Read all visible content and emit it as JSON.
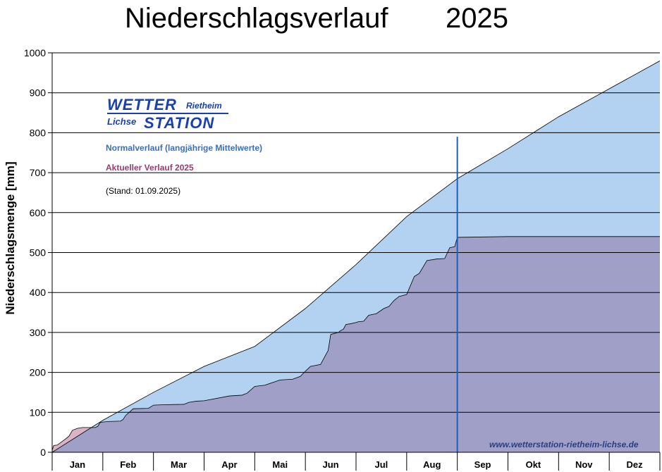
{
  "chart_data": {
    "type": "area",
    "title": "Niederschlagsverlauf",
    "year": "2025",
    "ylabel": "Niederschlagsmenge [mm]",
    "xlabel": "",
    "ylim": [
      0,
      1000
    ],
    "yticks": [
      "0",
      "100",
      "200",
      "300",
      "400",
      "500",
      "600",
      "700",
      "800",
      "900",
      "1000"
    ],
    "grid": true,
    "x_unit": "month_index",
    "categories": [
      "Jan",
      "Feb",
      "Mar",
      "Apr",
      "Mai",
      "Jun",
      "Jul",
      "Aug",
      "Sep",
      "Okt",
      "Nov",
      "Dez"
    ],
    "current_date_marker": {
      "x": 8.0,
      "label": ""
    },
    "series": [
      {
        "name": "Normalverlauf (langjährige Mittelwerte)",
        "color": "#b3d1f0",
        "x": [
          0,
          1,
          2,
          3,
          4,
          5,
          6,
          7,
          8,
          9,
          10,
          11,
          12
        ],
        "y": [
          0,
          80,
          150,
          215,
          265,
          360,
          470,
          590,
          685,
          760,
          840,
          910,
          980
        ]
      },
      {
        "name": "Aktueller Verlauf 2025",
        "color": "#9f9fc8",
        "overlap_color": "#d9b3c6",
        "x": [
          0.0,
          0.03,
          0.1,
          0.25,
          0.33,
          0.4,
          0.5,
          0.6,
          0.85,
          0.9,
          0.95,
          1.1,
          1.35,
          1.4,
          1.45,
          1.6,
          1.9,
          2.0,
          2.2,
          2.6,
          2.7,
          2.85,
          3.0,
          3.5,
          3.75,
          3.85,
          4.0,
          4.2,
          4.5,
          4.75,
          4.9,
          5.0,
          5.1,
          5.3,
          5.45,
          5.5,
          5.65,
          5.7,
          5.75,
          5.8,
          5.9,
          6.0,
          6.05,
          6.15,
          6.25,
          6.4,
          6.55,
          6.65,
          6.75,
          6.85,
          7.0,
          7.15,
          7.25,
          7.4,
          7.6,
          7.75,
          7.85,
          7.95,
          8.0,
          9.0,
          10.0,
          11.0,
          12.0
        ],
        "y": [
          5,
          17,
          18,
          32,
          40,
          55,
          60,
          62,
          62,
          65,
          75,
          77,
          78,
          82,
          92,
          109,
          110,
          118,
          119,
          120,
          125,
          128,
          129,
          141,
          143,
          148,
          165,
          168,
          181,
          183,
          190,
          203,
          215,
          220,
          255,
          295,
          300,
          305,
          308,
          320,
          322,
          325,
          327,
          328,
          343,
          347,
          360,
          365,
          380,
          390,
          395,
          440,
          448,
          480,
          484,
          485,
          512,
          515,
          538,
          540,
          540,
          540,
          540
        ]
      }
    ],
    "annotations": [
      "Normalverlauf (langjährige Mittelwerte)",
      "Aktueller Verlauf 2025",
      "(Stand: 01.09.2025)"
    ]
  },
  "logo": {
    "line1": "WETTER",
    "line1_small": "Rietheim",
    "line2_small": "Lichse",
    "line2": "STATION"
  },
  "stand_text": "(Stand: 01.09.2025)",
  "website": "www.wetterstation-rietheim-lichse.de"
}
